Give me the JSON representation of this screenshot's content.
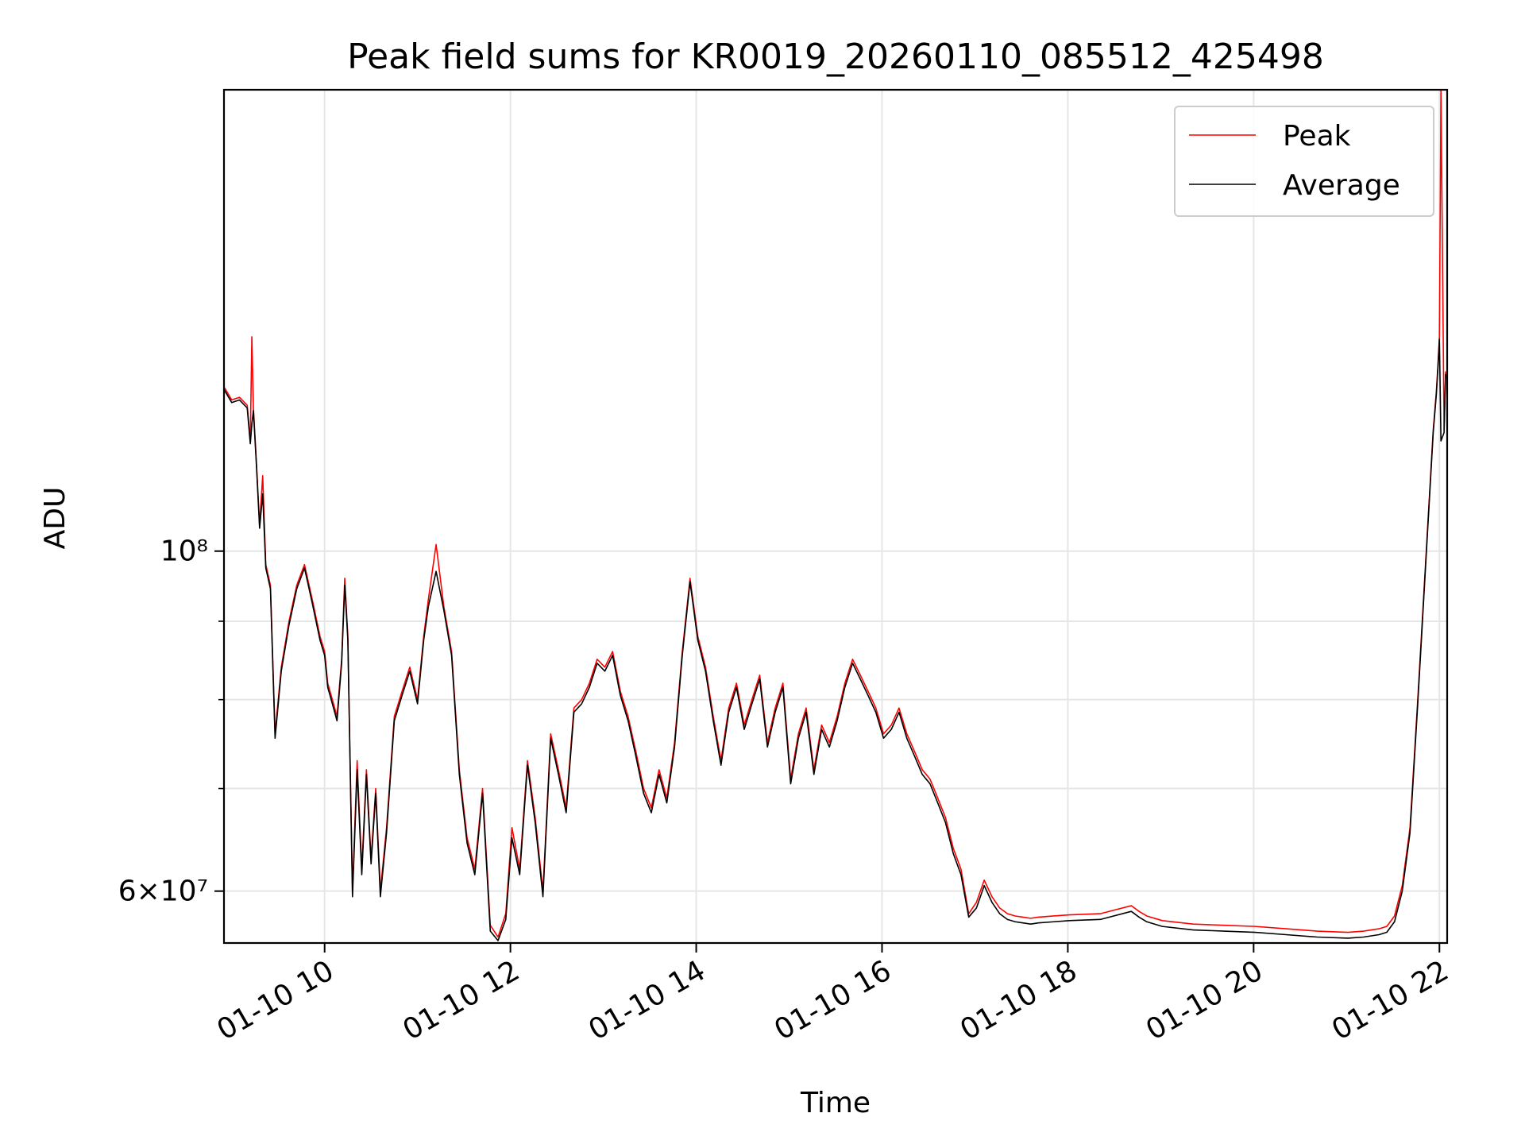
{
  "chart_data": {
    "type": "line",
    "title": "Peak field sums for KR0019_20260110_085512_425498",
    "xlabel": "Time",
    "ylabel": "ADU",
    "x_ticks": [
      "01-10 10",
      "01-10 12",
      "01-10 14",
      "01-10 16",
      "01-10 18",
      "01-10 20",
      "01-10 22"
    ],
    "y_ticks": [
      {
        "label": "6×10⁷",
        "value": 60000000,
        "major": true
      },
      {
        "label": "10⁸",
        "value": 100000000,
        "major": true
      }
    ],
    "y_minor_ticks": [
      70000000,
      80000000,
      90000000
    ],
    "y_scale": "log",
    "xlim": [
      "2026-01-10T08:55",
      "2026-01-10T22:05"
    ],
    "ylim": [
      55500000,
      200000000
    ],
    "grid": true,
    "legend_position": "upper right",
    "colors": {
      "peak": "#ff0000",
      "average": "#000000",
      "grid": "#e6e6e6"
    },
    "series": [
      {
        "name": "Peak",
        "color": "#ff0000",
        "x": [
          "2026-01-10T08:55",
          "2026-01-10T09:00",
          "2026-01-10T09:05",
          "2026-01-10T09:10",
          "2026-01-10T09:12",
          "2026-01-10T09:13",
          "2026-01-10T09:14",
          "2026-01-10T09:16",
          "2026-01-10T09:18",
          "2026-01-10T09:20",
          "2026-01-10T09:22",
          "2026-01-10T09:25",
          "2026-01-10T09:28",
          "2026-01-10T09:32",
          "2026-01-10T09:37",
          "2026-01-10T09:42",
          "2026-01-10T09:47",
          "2026-01-10T09:52",
          "2026-01-10T09:57",
          "2026-01-10T10:00",
          "2026-01-10T10:02",
          "2026-01-10T10:05",
          "2026-01-10T10:08",
          "2026-01-10T10:11",
          "2026-01-10T10:13",
          "2026-01-10T10:15",
          "2026-01-10T10:18",
          "2026-01-10T10:21",
          "2026-01-10T10:24",
          "2026-01-10T10:27",
          "2026-01-10T10:30",
          "2026-01-10T10:33",
          "2026-01-10T10:36",
          "2026-01-10T10:40",
          "2026-01-10T10:45",
          "2026-01-10T10:50",
          "2026-01-10T10:55",
          "2026-01-10T11:00",
          "2026-01-10T11:04",
          "2026-01-10T11:07",
          "2026-01-10T11:12",
          "2026-01-10T11:17",
          "2026-01-10T11:22",
          "2026-01-10T11:27",
          "2026-01-10T11:32",
          "2026-01-10T11:37",
          "2026-01-10T11:42",
          "2026-01-10T11:47",
          "2026-01-10T11:52",
          "2026-01-10T11:57",
          "2026-01-10T12:01",
          "2026-01-10T12:06",
          "2026-01-10T12:11",
          "2026-01-10T12:16",
          "2026-01-10T12:21",
          "2026-01-10T12:26",
          "2026-01-10T12:31",
          "2026-01-10T12:36",
          "2026-01-10T12:41",
          "2026-01-10T12:46",
          "2026-01-10T12:51",
          "2026-01-10T12:56",
          "2026-01-10T13:01",
          "2026-01-10T13:06",
          "2026-01-10T13:11",
          "2026-01-10T13:16",
          "2026-01-10T13:21",
          "2026-01-10T13:26",
          "2026-01-10T13:31",
          "2026-01-10T13:36",
          "2026-01-10T13:41",
          "2026-01-10T13:46",
          "2026-01-10T13:51",
          "2026-01-10T13:56",
          "2026-01-10T14:01",
          "2026-01-10T14:06",
          "2026-01-10T14:11",
          "2026-01-10T14:16",
          "2026-01-10T14:21",
          "2026-01-10T14:26",
          "2026-01-10T14:31",
          "2026-01-10T14:36",
          "2026-01-10T14:41",
          "2026-01-10T14:46",
          "2026-01-10T14:51",
          "2026-01-10T14:56",
          "2026-01-10T15:01",
          "2026-01-10T15:06",
          "2026-01-10T15:11",
          "2026-01-10T15:16",
          "2026-01-10T15:21",
          "2026-01-10T15:26",
          "2026-01-10T15:31",
          "2026-01-10T15:36",
          "2026-01-10T15:41",
          "2026-01-10T15:46",
          "2026-01-10T15:51",
          "2026-01-10T15:56",
          "2026-01-10T16:01",
          "2026-01-10T16:06",
          "2026-01-10T16:11",
          "2026-01-10T16:16",
          "2026-01-10T16:21",
          "2026-01-10T16:26",
          "2026-01-10T16:31",
          "2026-01-10T16:36",
          "2026-01-10T16:41",
          "2026-01-10T16:46",
          "2026-01-10T16:51",
          "2026-01-10T16:56",
          "2026-01-10T17:01",
          "2026-01-10T17:06",
          "2026-01-10T17:11",
          "2026-01-10T17:16",
          "2026-01-10T17:21",
          "2026-01-10T17:26",
          "2026-01-10T17:31",
          "2026-01-10T17:36",
          "2026-01-10T17:41",
          "2026-01-10T17:51",
          "2026-01-10T18:01",
          "2026-01-10T18:21",
          "2026-01-10T18:41",
          "2026-01-10T18:46",
          "2026-01-10T18:51",
          "2026-01-10T19:01",
          "2026-01-10T19:21",
          "2026-01-10T19:41",
          "2026-01-10T20:01",
          "2026-01-10T20:21",
          "2026-01-10T20:41",
          "2026-01-10T21:01",
          "2026-01-10T21:11",
          "2026-01-10T21:21",
          "2026-01-10T21:26",
          "2026-01-10T21:31",
          "2026-01-10T21:36",
          "2026-01-10T21:41",
          "2026-01-10T21:46",
          "2026-01-10T21:51",
          "2026-01-10T21:56",
          "2026-01-10T21:58",
          "2026-01-10T21:59",
          "2026-01-10T22:00",
          "2026-01-10T22:01",
          "2026-01-10T22:03",
          "2026-01-10T22:04"
        ],
        "y": [
          128000000,
          125500000,
          126000000,
          124500000,
          118000000,
          138000000,
          124000000,
          114000000,
          104000000,
          112000000,
          98000000,
          95000000,
          76000000,
          84000000,
          90000000,
          95000000,
          98000000,
          93000000,
          88000000,
          86000000,
          82000000,
          80000000,
          78000000,
          85000000,
          96000000,
          88000000,
          60000000,
          73000000,
          62000000,
          72000000,
          63000000,
          70000000,
          60000000,
          66000000,
          78000000,
          81000000,
          84000000,
          80000000,
          88000000,
          93000000,
          101000000,
          92000000,
          86000000,
          72000000,
          65000000,
          62000000,
          70000000,
          57000000,
          56000000,
          58000000,
          66000000,
          62000000,
          73000000,
          67000000,
          60000000,
          76000000,
          72000000,
          68000000,
          79000000,
          80000000,
          82000000,
          85000000,
          84000000,
          86000000,
          81000000,
          78000000,
          74000000,
          70000000,
          68000000,
          72000000,
          69000000,
          75000000,
          86000000,
          96000000,
          88000000,
          84000000,
          78000000,
          73000000,
          79000000,
          82000000,
          77000000,
          80000000,
          83000000,
          75000000,
          79000000,
          82000000,
          71000000,
          76000000,
          79000000,
          72000000,
          77000000,
          75000000,
          78000000,
          82000000,
          85000000,
          83000000,
          81000000,
          79000000,
          76000000,
          77000000,
          79000000,
          76000000,
          74000000,
          72000000,
          71000000,
          69000000,
          67000000,
          64000000,
          62000000,
          58000000,
          59000000,
          61000000,
          59500000,
          58500000,
          58000000,
          57800000,
          57700000,
          57600000,
          57700000,
          57800000,
          57900000,
          58000000,
          58700000,
          58200000,
          57800000,
          57400000,
          57100000,
          57000000,
          56900000,
          56700000,
          56500000,
          56400000,
          56500000,
          56700000,
          56900000,
          57800000,
          60500000,
          66000000,
          80000000,
          98000000,
          120000000,
          127000000,
          132000000,
          138000000,
          200000000,
          120000000,
          131000000
        ]
      },
      {
        "name": "Average",
        "color": "#000000",
        "x": [
          "2026-01-10T08:55",
          "2026-01-10T09:00",
          "2026-01-10T09:05",
          "2026-01-10T09:10",
          "2026-01-10T09:12",
          "2026-01-10T09:13",
          "2026-01-10T09:14",
          "2026-01-10T09:16",
          "2026-01-10T09:18",
          "2026-01-10T09:20",
          "2026-01-10T09:22",
          "2026-01-10T09:25",
          "2026-01-10T09:28",
          "2026-01-10T09:32",
          "2026-01-10T09:37",
          "2026-01-10T09:42",
          "2026-01-10T09:47",
          "2026-01-10T09:52",
          "2026-01-10T09:57",
          "2026-01-10T10:00",
          "2026-01-10T10:02",
          "2026-01-10T10:05",
          "2026-01-10T10:08",
          "2026-01-10T10:11",
          "2026-01-10T10:13",
          "2026-01-10T10:15",
          "2026-01-10T10:18",
          "2026-01-10T10:21",
          "2026-01-10T10:24",
          "2026-01-10T10:27",
          "2026-01-10T10:30",
          "2026-01-10T10:33",
          "2026-01-10T10:36",
          "2026-01-10T10:40",
          "2026-01-10T10:45",
          "2026-01-10T10:50",
          "2026-01-10T10:55",
          "2026-01-10T11:00",
          "2026-01-10T11:04",
          "2026-01-10T11:07",
          "2026-01-10T11:12",
          "2026-01-10T11:17",
          "2026-01-10T11:22",
          "2026-01-10T11:27",
          "2026-01-10T11:32",
          "2026-01-10T11:37",
          "2026-01-10T11:42",
          "2026-01-10T11:47",
          "2026-01-10T11:52",
          "2026-01-10T11:57",
          "2026-01-10T12:01",
          "2026-01-10T12:06",
          "2026-01-10T12:11",
          "2026-01-10T12:16",
          "2026-01-10T12:21",
          "2026-01-10T12:26",
          "2026-01-10T12:31",
          "2026-01-10T12:36",
          "2026-01-10T12:41",
          "2026-01-10T12:46",
          "2026-01-10T12:51",
          "2026-01-10T12:56",
          "2026-01-10T13:01",
          "2026-01-10T13:06",
          "2026-01-10T13:11",
          "2026-01-10T13:16",
          "2026-01-10T13:21",
          "2026-01-10T13:26",
          "2026-01-10T13:31",
          "2026-01-10T13:36",
          "2026-01-10T13:41",
          "2026-01-10T13:46",
          "2026-01-10T13:51",
          "2026-01-10T13:56",
          "2026-01-10T14:01",
          "2026-01-10T14:06",
          "2026-01-10T14:11",
          "2026-01-10T14:16",
          "2026-01-10T14:21",
          "2026-01-10T14:26",
          "2026-01-10T14:31",
          "2026-01-10T14:36",
          "2026-01-10T14:41",
          "2026-01-10T14:46",
          "2026-01-10T14:51",
          "2026-01-10T14:56",
          "2026-01-10T15:01",
          "2026-01-10T15:06",
          "2026-01-10T15:11",
          "2026-01-10T15:16",
          "2026-01-10T15:21",
          "2026-01-10T15:26",
          "2026-01-10T15:31",
          "2026-01-10T15:36",
          "2026-01-10T15:41",
          "2026-01-10T15:46",
          "2026-01-10T15:51",
          "2026-01-10T15:56",
          "2026-01-10T16:01",
          "2026-01-10T16:06",
          "2026-01-10T16:11",
          "2026-01-10T16:16",
          "2026-01-10T16:21",
          "2026-01-10T16:26",
          "2026-01-10T16:31",
          "2026-01-10T16:36",
          "2026-01-10T16:41",
          "2026-01-10T16:46",
          "2026-01-10T16:51",
          "2026-01-10T16:56",
          "2026-01-10T17:01",
          "2026-01-10T17:06",
          "2026-01-10T17:11",
          "2026-01-10T17:16",
          "2026-01-10T17:21",
          "2026-01-10T17:26",
          "2026-01-10T17:31",
          "2026-01-10T17:36",
          "2026-01-10T17:41",
          "2026-01-10T17:51",
          "2026-01-10T18:01",
          "2026-01-10T18:21",
          "2026-01-10T18:41",
          "2026-01-10T18:46",
          "2026-01-10T18:51",
          "2026-01-10T19:01",
          "2026-01-10T19:21",
          "2026-01-10T19:41",
          "2026-01-10T20:01",
          "2026-01-10T20:21",
          "2026-01-10T20:41",
          "2026-01-10T21:01",
          "2026-01-10T21:11",
          "2026-01-10T21:21",
          "2026-01-10T21:26",
          "2026-01-10T21:31",
          "2026-01-10T21:36",
          "2026-01-10T21:41",
          "2026-01-10T21:46",
          "2026-01-10T21:51",
          "2026-01-10T21:56",
          "2026-01-10T21:58",
          "2026-01-10T21:59",
          "2026-01-10T22:00",
          "2026-01-10T22:01",
          "2026-01-10T22:03",
          "2026-01-10T22:04"
        ],
        "y": [
          127500000,
          125000000,
          125500000,
          124000000,
          117500000,
          121000000,
          123500000,
          113500000,
          103500000,
          109000000,
          97500000,
          94500000,
          75500000,
          83500000,
          89500000,
          94500000,
          97500000,
          92500000,
          87500000,
          85500000,
          81500000,
          79500000,
          77500000,
          84500000,
          95000000,
          87500000,
          59500000,
          72000000,
          61500000,
          71500000,
          62500000,
          69500000,
          59500000,
          65500000,
          77500000,
          80500000,
          83500000,
          79500000,
          87500000,
          92000000,
          97000000,
          91500000,
          85500000,
          71500000,
          64500000,
          61500000,
          69500000,
          56500000,
          55700000,
          57500000,
          65000000,
          61500000,
          72500000,
          66500000,
          59500000,
          75500000,
          71500000,
          67500000,
          78500000,
          79500000,
          81500000,
          84500000,
          83500000,
          85500000,
          80500000,
          77500000,
          73500000,
          69500000,
          67500000,
          71500000,
          68500000,
          74500000,
          85500000,
          95500000,
          87500000,
          83500000,
          77500000,
          72500000,
          78500000,
          81500000,
          76500000,
          79500000,
          82500000,
          74500000,
          78500000,
          81500000,
          70500000,
          75500000,
          78500000,
          71500000,
          76500000,
          74500000,
          77500000,
          81500000,
          84500000,
          82500000,
          80500000,
          78500000,
          75500000,
          76500000,
          78500000,
          75500000,
          73500000,
          71500000,
          70500000,
          68500000,
          66500000,
          63500000,
          61500000,
          57700000,
          58500000,
          60500000,
          59000000,
          58000000,
          57500000,
          57300000,
          57200000,
          57100000,
          57200000,
          57300000,
          57400000,
          57500000,
          58200000,
          57700000,
          57300000,
          56900000,
          56600000,
          56500000,
          56400000,
          56200000,
          56000000,
          55900000,
          56000000,
          56200000,
          56400000,
          57300000,
          60000000,
          65500000,
          79500000,
          97500000,
          119500000,
          126500000,
          131500000,
          137500000,
          118000000,
          119500000,
          130500000
        ]
      }
    ]
  }
}
